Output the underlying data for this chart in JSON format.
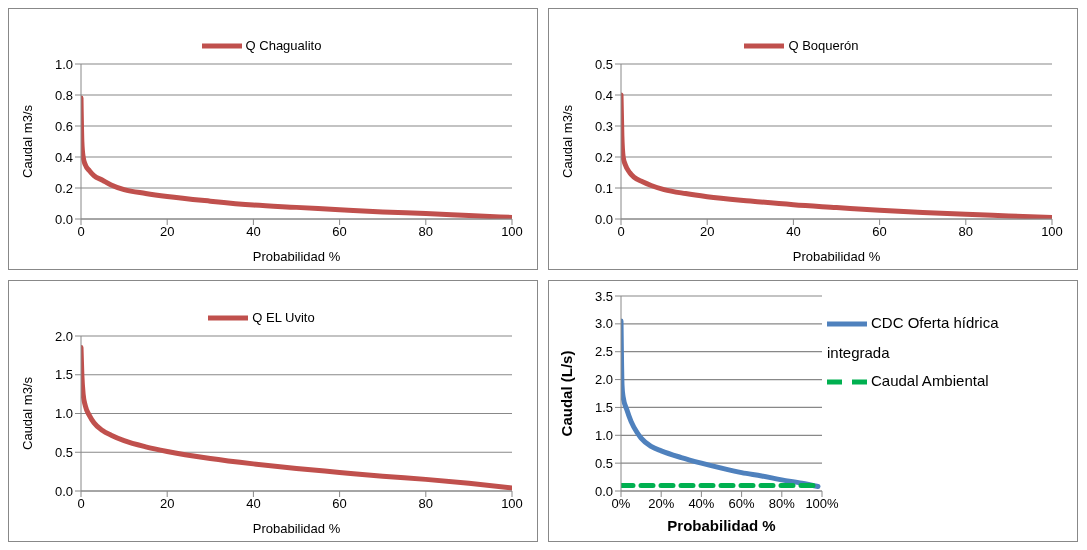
{
  "chart_data": [
    {
      "type": "line",
      "xlabel": "Probabilidad %",
      "ylabel": "Caudal m3/s",
      "xlim": [
        0,
        100
      ],
      "xticks": [
        0,
        20,
        40,
        60,
        80,
        100
      ],
      "ylim": [
        0,
        1
      ],
      "yticks": [
        {
          "value": 0,
          "label": "0.0"
        },
        0.2,
        0.4,
        0.6,
        0.8,
        {
          "value": 1,
          "label": "1.0"
        }
      ],
      "grid": "y",
      "legend": "top",
      "series": [
        {
          "name": "Q Chagualito",
          "color": "#c0504d",
          "x": [
            0,
            0.2,
            0.5,
            1,
            2,
            3,
            5,
            7,
            10,
            15,
            20,
            30,
            40,
            50,
            60,
            70,
            80,
            90,
            100
          ],
          "values": [
            0.78,
            0.5,
            0.4,
            0.35,
            0.31,
            0.28,
            0.25,
            0.22,
            0.19,
            0.165,
            0.145,
            0.115,
            0.09,
            0.075,
            0.06,
            0.045,
            0.035,
            0.022,
            0.01
          ]
        }
      ]
    },
    {
      "type": "line",
      "xlabel": "Probabilidad %",
      "ylabel": "Caudal m3/s",
      "xlim": [
        0,
        100
      ],
      "xticks": [
        0,
        20,
        40,
        60,
        80,
        100
      ],
      "ylim": [
        0,
        0.5
      ],
      "yticks": [
        {
          "value": 0,
          "label": "0.0"
        },
        0.1,
        0.2,
        0.3,
        0.4,
        0.5
      ],
      "grid": "y",
      "legend": "top",
      "series": [
        {
          "name": "Q Boquerón",
          "color": "#c0504d",
          "x": [
            0,
            0.2,
            0.5,
            1,
            2,
            3,
            5,
            7,
            10,
            15,
            20,
            30,
            40,
            50,
            60,
            70,
            80,
            90,
            100
          ],
          "values": [
            0.4,
            0.27,
            0.2,
            0.175,
            0.15,
            0.135,
            0.12,
            0.108,
            0.095,
            0.082,
            0.072,
            0.058,
            0.046,
            0.037,
            0.028,
            0.021,
            0.015,
            0.01,
            0.005
          ]
        }
      ]
    },
    {
      "type": "line",
      "xlabel": "Probabilidad %",
      "ylabel": "Caudal m3/s",
      "xlim": [
        0,
        100
      ],
      "xticks": [
        0,
        20,
        40,
        60,
        80,
        100
      ],
      "ylim": [
        0,
        2
      ],
      "yticks": [
        {
          "value": 0,
          "label": "0.0"
        },
        0.5,
        {
          "value": 1,
          "label": "1.0"
        },
        1.5,
        {
          "value": 2,
          "label": "2.0"
        }
      ],
      "grid": "y",
      "legend": "top",
      "series": [
        {
          "name": "Q EL Uvito",
          "color": "#c0504d",
          "x": [
            0,
            0.2,
            0.5,
            1,
            2,
            3,
            5,
            7,
            10,
            15,
            20,
            30,
            40,
            50,
            60,
            70,
            80,
            90,
            100
          ],
          "values": [
            1.85,
            1.5,
            1.25,
            1.1,
            0.97,
            0.88,
            0.78,
            0.72,
            0.65,
            0.57,
            0.51,
            0.42,
            0.35,
            0.29,
            0.24,
            0.19,
            0.15,
            0.1,
            0.04
          ]
        }
      ]
    },
    {
      "type": "line",
      "xlabel": "Probabilidad %",
      "ylabel": "Caudal (L/s)",
      "xlim": [
        0,
        100
      ],
      "xticks": [
        {
          "value": 0,
          "label": "0%"
        },
        {
          "value": 20,
          "label": "20%"
        },
        {
          "value": 40,
          "label": "40%"
        },
        {
          "value": 60,
          "label": "60%"
        },
        {
          "value": 80,
          "label": "80%"
        },
        {
          "value": 100,
          "label": "100%"
        }
      ],
      "ylim": [
        0,
        3.5
      ],
      "yticks": [
        {
          "value": 0,
          "label": "0.0"
        },
        0.5,
        {
          "value": 1,
          "label": "1.0"
        },
        1.5,
        {
          "value": 2,
          "label": "2.0"
        },
        2.5,
        {
          "value": 3,
          "label": "3.0"
        },
        3.5
      ],
      "grid": "y",
      "legend": "top right",
      "series": [
        {
          "name": "CDC Oferta hídrica integrada",
          "color": "#4f81bd",
          "x": [
            0,
            0.2,
            0.5,
            1,
            3,
            5,
            8,
            10,
            15,
            20,
            30,
            40,
            50,
            60,
            70,
            80,
            90,
            98
          ],
          "values": [
            3.05,
            2.5,
            1.9,
            1.7,
            1.45,
            1.25,
            1.05,
            0.95,
            0.8,
            0.72,
            0.6,
            0.5,
            0.41,
            0.33,
            0.27,
            0.2,
            0.14,
            0.08
          ]
        },
        {
          "name": "Caudal Ambiental",
          "color": "#00b050",
          "line_style": "dashed",
          "x": [
            0,
            98
          ],
          "values": [
            0.1,
            0.1
          ]
        }
      ]
    }
  ]
}
